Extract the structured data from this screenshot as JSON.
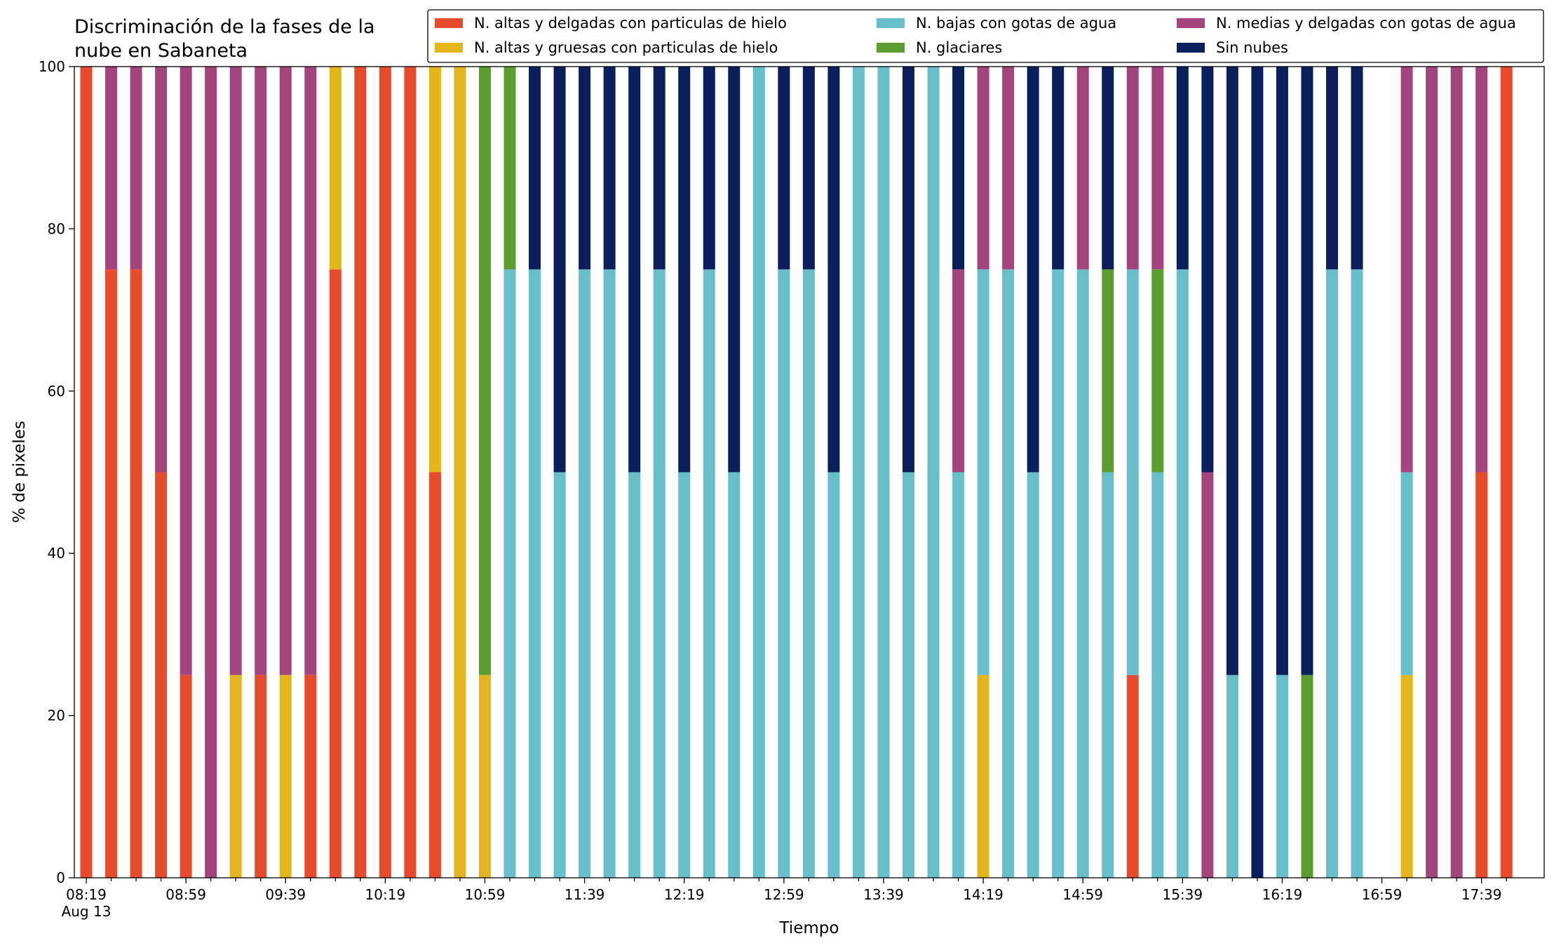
{
  "chart_data": {
    "type": "stacked-bar",
    "title": "Discriminación de la fases de la\nnube en Sabaneta",
    "x_label": "Tiempo",
    "y_label": "% de pixeles",
    "categories": [
      "08:19",
      null,
      null,
      null,
      "08:59",
      null,
      null,
      null,
      "09:39",
      null,
      null,
      null,
      "10:19",
      null,
      null,
      null,
      "10:59",
      null,
      null,
      null,
      "11:39",
      null,
      null,
      null,
      "12:19",
      null,
      null,
      null,
      "12:59",
      null,
      null,
      null,
      "13:39",
      null,
      null,
      null,
      "14:19",
      null,
      null,
      null,
      "14:59",
      null,
      null,
      null,
      "15:39",
      null,
      null,
      null,
      "16:19",
      null,
      null,
      null,
      "16:59",
      null,
      null,
      null,
      "17:39",
      null
    ],
    "x_sublabel": "Aug 13",
    "ylim": [
      0,
      100
    ],
    "yticks": [
      0,
      20,
      40,
      60,
      80,
      100
    ],
    "grid": false,
    "legend_loc": "upper right",
    "legend_ncol": 3,
    "series": [
      {
        "name": "N. altas y delgadas con particulas de hielo",
        "color": "#e84a2c",
        "values": [
          100,
          75,
          75,
          50,
          25,
          0,
          0,
          25,
          0,
          25,
          75,
          100,
          100,
          100,
          50,
          0,
          0,
          0,
          0,
          0,
          0,
          0,
          0,
          0,
          0,
          0,
          0,
          0,
          0,
          0,
          0,
          0,
          0,
          0,
          0,
          0,
          0,
          0,
          0,
          0,
          0,
          0,
          25,
          0,
          0,
          0,
          0,
          0,
          0,
          0,
          0,
          0,
          null,
          0,
          0,
          0,
          50,
          100
        ]
      },
      {
        "name": "N. altas y gruesas con particulas de hielo",
        "color": "#e4b51a",
        "values": [
          0,
          0,
          0,
          0,
          0,
          0,
          25,
          0,
          25,
          0,
          25,
          0,
          0,
          0,
          50,
          100,
          25,
          0,
          0,
          0,
          0,
          0,
          0,
          0,
          0,
          0,
          0,
          0,
          0,
          0,
          0,
          0,
          0,
          0,
          0,
          0,
          25,
          0,
          0,
          0,
          0,
          0,
          0,
          0,
          0,
          0,
          0,
          0,
          0,
          0,
          0,
          0,
          null,
          25,
          0,
          0,
          0,
          0
        ]
      },
      {
        "name": "N. bajas con gotas de agua",
        "color": "#66bfcb",
        "values": [
          0,
          0,
          0,
          0,
          0,
          0,
          0,
          0,
          0,
          0,
          0,
          0,
          0,
          0,
          0,
          0,
          0,
          75,
          75,
          50,
          75,
          75,
          50,
          75,
          50,
          75,
          50,
          100,
          75,
          75,
          50,
          100,
          100,
          50,
          100,
          50,
          50,
          75,
          50,
          75,
          75,
          50,
          50,
          50,
          75,
          0,
          25,
          0,
          25,
          0,
          75,
          75,
          null,
          25,
          0,
          0,
          0,
          0
        ]
      },
      {
        "name": "N. glaciares",
        "color": "#5c9e2e",
        "values": [
          0,
          0,
          0,
          0,
          0,
          0,
          0,
          0,
          0,
          0,
          0,
          0,
          0,
          0,
          0,
          0,
          75,
          25,
          0,
          0,
          0,
          0,
          0,
          0,
          0,
          0,
          0,
          0,
          0,
          0,
          0,
          0,
          0,
          0,
          0,
          0,
          0,
          0,
          0,
          0,
          0,
          25,
          0,
          25,
          0,
          0,
          0,
          0,
          0,
          25,
          0,
          0,
          null,
          0,
          0,
          0,
          0,
          0
        ]
      },
      {
        "name": "N. medias y delgadas con gotas de agua",
        "color": "#a3457c",
        "values": [
          0,
          25,
          25,
          50,
          75,
          100,
          75,
          75,
          75,
          75,
          0,
          0,
          0,
          0,
          0,
          0,
          0,
          0,
          0,
          0,
          0,
          0,
          0,
          0,
          0,
          0,
          0,
          0,
          0,
          0,
          0,
          0,
          0,
          0,
          0,
          25,
          25,
          25,
          0,
          0,
          25,
          0,
          25,
          25,
          0,
          50,
          0,
          0,
          0,
          0,
          0,
          0,
          null,
          50,
          100,
          100,
          50,
          0
        ]
      },
      {
        "name": "Sin nubes",
        "color": "#0a1f5c",
        "values": [
          0,
          0,
          0,
          0,
          0,
          0,
          0,
          0,
          0,
          0,
          0,
          0,
          0,
          0,
          0,
          0,
          0,
          0,
          25,
          50,
          25,
          25,
          50,
          25,
          50,
          25,
          50,
          0,
          25,
          25,
          50,
          0,
          0,
          50,
          0,
          25,
          0,
          0,
          50,
          25,
          0,
          25,
          0,
          0,
          25,
          50,
          75,
          100,
          75,
          75,
          25,
          25,
          null,
          0,
          0,
          0,
          0,
          0
        ]
      }
    ]
  }
}
